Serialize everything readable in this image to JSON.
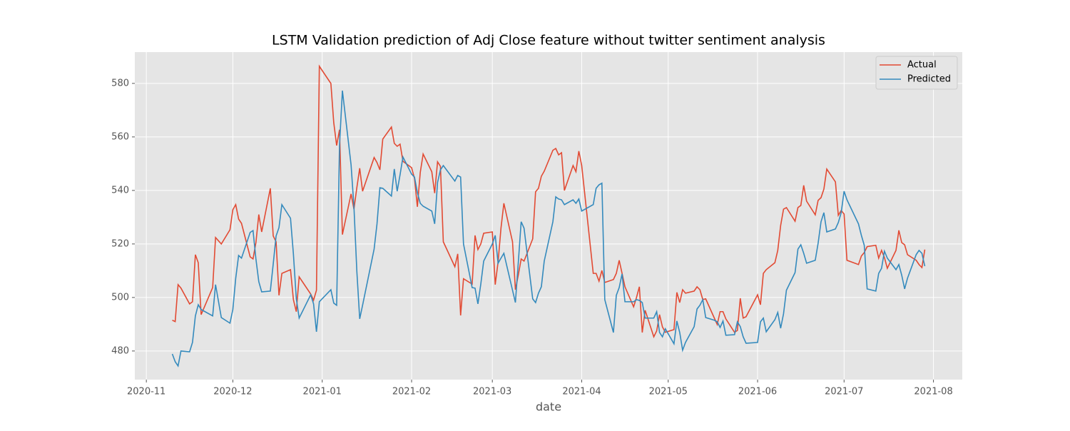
{
  "chart_data": {
    "type": "line",
    "title": "LSTM Validation prediction of Adj Close feature without twitter sentiment analysis",
    "x_label": "date",
    "grid": true,
    "legend": "upper right",
    "xlim": [
      "2020-10-28",
      "2021-08-11"
    ],
    "ylim": [
      469.3,
      591.7
    ],
    "xticks": [
      {
        "value": "2020-11-01",
        "label": "2020-11"
      },
      {
        "value": "2020-12-01",
        "label": "2020-12"
      },
      {
        "value": "2021-01-01",
        "label": "2021-01"
      },
      {
        "value": "2021-02-01",
        "label": "2021-02"
      },
      {
        "value": "2021-03-01",
        "label": "2021-03"
      },
      {
        "value": "2021-04-01",
        "label": "2021-04"
      },
      {
        "value": "2021-05-01",
        "label": "2021-05"
      },
      {
        "value": "2021-06-01",
        "label": "2021-06"
      },
      {
        "value": "2021-07-01",
        "label": "2021-07"
      },
      {
        "value": "2021-08-01",
        "label": "2021-08"
      }
    ],
    "yticks": [
      480,
      500,
      520,
      540,
      560,
      580
    ],
    "x": [
      "2020-11-10",
      "2020-11-11",
      "2020-11-12",
      "2020-11-13",
      "2020-11-16",
      "2020-11-17",
      "2020-11-18",
      "2020-11-19",
      "2020-11-20",
      "2020-11-24",
      "2020-11-25",
      "2020-11-27",
      "2020-11-30",
      "2020-12-01",
      "2020-12-02",
      "2020-12-03",
      "2020-12-04",
      "2020-12-07",
      "2020-12-08",
      "2020-12-09",
      "2020-12-10",
      "2020-12-11",
      "2020-12-14",
      "2020-12-15",
      "2020-12-16",
      "2020-12-17",
      "2020-12-18",
      "2020-12-21",
      "2020-12-22",
      "2020-12-23",
      "2020-12-24",
      "2020-12-28",
      "2020-12-29",
      "2020-12-30",
      "2020-12-31",
      "2021-01-04",
      "2021-01-05",
      "2021-01-06",
      "2021-01-07",
      "2021-01-08",
      "2021-01-11",
      "2021-01-12",
      "2021-01-13",
      "2021-01-14",
      "2021-01-15",
      "2021-01-19",
      "2021-01-20",
      "2021-01-21",
      "2021-01-22",
      "2021-01-25",
      "2021-01-26",
      "2021-01-27",
      "2021-01-28",
      "2021-01-29",
      "2021-02-01",
      "2021-02-02",
      "2021-02-03",
      "2021-02-04",
      "2021-02-05",
      "2021-02-08",
      "2021-02-09",
      "2021-02-10",
      "2021-02-11",
      "2021-02-12",
      "2021-02-16",
      "2021-02-17",
      "2021-02-18",
      "2021-02-19",
      "2021-02-22",
      "2021-02-23",
      "2021-02-24",
      "2021-02-25",
      "2021-02-26",
      "2021-03-01",
      "2021-03-02",
      "2021-03-03",
      "2021-03-04",
      "2021-03-05",
      "2021-03-08",
      "2021-03-09",
      "2021-03-10",
      "2021-03-11",
      "2021-03-12",
      "2021-03-15",
      "2021-03-16",
      "2021-03-17",
      "2021-03-18",
      "2021-03-19",
      "2021-03-22",
      "2021-03-23",
      "2021-03-24",
      "2021-03-25",
      "2021-03-26",
      "2021-03-29",
      "2021-03-30",
      "2021-03-31",
      "2021-04-01",
      "2021-04-05",
      "2021-04-06",
      "2021-04-07",
      "2021-04-08",
      "2021-04-09",
      "2021-04-12",
      "2021-04-13",
      "2021-04-14",
      "2021-04-15",
      "2021-04-16",
      "2021-04-19",
      "2021-04-20",
      "2021-04-21",
      "2021-04-22",
      "2021-04-23",
      "2021-04-26",
      "2021-04-27",
      "2021-04-28",
      "2021-04-29",
      "2021-04-30",
      "2021-05-03",
      "2021-05-04",
      "2021-05-05",
      "2021-05-06",
      "2021-05-07",
      "2021-05-10",
      "2021-05-11",
      "2021-05-12",
      "2021-05-13",
      "2021-05-14",
      "2021-05-17",
      "2021-05-18",
      "2021-05-19",
      "2021-05-20",
      "2021-05-21",
      "2021-05-24",
      "2021-05-25",
      "2021-05-26",
      "2021-05-27",
      "2021-05-28",
      "2021-06-01",
      "2021-06-02",
      "2021-06-03",
      "2021-06-04",
      "2021-06-07",
      "2021-06-08",
      "2021-06-09",
      "2021-06-10",
      "2021-06-11",
      "2021-06-14",
      "2021-06-15",
      "2021-06-16",
      "2021-06-17",
      "2021-06-18",
      "2021-06-21",
      "2021-06-22",
      "2021-06-23",
      "2021-06-24",
      "2021-06-25",
      "2021-06-28",
      "2021-06-29",
      "2021-06-30",
      "2021-07-01",
      "2021-07-02",
      "2021-07-06",
      "2021-07-07",
      "2021-07-08",
      "2021-07-09",
      "2021-07-12",
      "2021-07-13",
      "2021-07-14",
      "2021-07-15",
      "2021-07-16",
      "2021-07-19",
      "2021-07-20",
      "2021-07-21",
      "2021-07-22",
      "2021-07-23",
      "2021-07-26",
      "2021-07-27",
      "2021-07-28",
      "2021-07-29"
    ],
    "series": [
      {
        "name": "Actual",
        "color": "#E24A33",
        "values": [
          491.5,
          491,
          504.8,
          503.5,
          497.6,
          498.4,
          516,
          513,
          493.6,
          503.7,
          522.4,
          520,
          525.3,
          532.8,
          534.7,
          529.3,
          527.7,
          515.2,
          514.4,
          520.5,
          531,
          524.5,
          540.8,
          523,
          520.8,
          500.8,
          509,
          510.4,
          499.2,
          494.7,
          507.7,
          501.3,
          499,
          502.7,
          586.4,
          580,
          565.3,
          556.8,
          562.7,
          523.5,
          538.7,
          533,
          541,
          548.3,
          539.7,
          552.3,
          550.4,
          547.7,
          559.2,
          563.7,
          557.6,
          556.5,
          557.3,
          550.9,
          548.5,
          544.5,
          533.9,
          546.7,
          553.6,
          547,
          539,
          550.7,
          549,
          520.8,
          511.5,
          516.3,
          493.3,
          507,
          505,
          523.2,
          517.9,
          520,
          524,
          524.5,
          504.8,
          513.3,
          525.9,
          535.2,
          520.8,
          502.9,
          508.3,
          514.4,
          513.6,
          521.9,
          539.5,
          540.8,
          545.3,
          547.2,
          555,
          555.7,
          553.3,
          554.1,
          540,
          549.3,
          547,
          554.7,
          549.3,
          509,
          509,
          506.1,
          510.1,
          505.6,
          506.7,
          509,
          513.9,
          509,
          504,
          496.5,
          500,
          504,
          486.9,
          495.2,
          485.3,
          487.5,
          493.6,
          489,
          487,
          488,
          501.9,
          498.1,
          502.9,
          501.6,
          502.4,
          504,
          502.9,
          499.2,
          499.5,
          492.3,
          489.9,
          494.7,
          494.7,
          492,
          487,
          487.7,
          499.7,
          492.3,
          492.8,
          501,
          497.3,
          509,
          510.4,
          513,
          517.6,
          526.9,
          533,
          533.6,
          528.5,
          533.6,
          534.4,
          541.9,
          536,
          530.9,
          536.3,
          537.3,
          540.5,
          548,
          543.2,
          530.7,
          532.5,
          531.2,
          513.9,
          512.3,
          515.5,
          516.8,
          519,
          519.5,
          514.7,
          517.6,
          514.9,
          510.9,
          517.6,
          525.1,
          520.5,
          519.7,
          516,
          513.9,
          512.3,
          511.2,
          517.9
        ]
      },
      {
        "name": "Predicted",
        "color": "#348ABD",
        "values": [
          478.9,
          476,
          474.4,
          480,
          479.7,
          483.2,
          493.1,
          497.3,
          495.5,
          493.1,
          504.8,
          492.5,
          490.4,
          495.5,
          507.2,
          515.7,
          514.7,
          524.3,
          525,
          514.4,
          505.9,
          502.1,
          502.4,
          512.5,
          523,
          526.1,
          534.7,
          529.6,
          516.3,
          499.7,
          492.3,
          501,
          497.6,
          487.2,
          498.4,
          502.9,
          497.9,
          497.1,
          557,
          577.3,
          549.6,
          533.9,
          509.9,
          492,
          497.1,
          518.1,
          527.5,
          541,
          540.8,
          537.9,
          548,
          539.7,
          545.9,
          552.5,
          546.1,
          545,
          539.2,
          535.2,
          534.1,
          532.3,
          527.5,
          543,
          547.7,
          549.3,
          543.5,
          545.6,
          545,
          520,
          503.7,
          503.5,
          497.6,
          505,
          513.6,
          520,
          523.2,
          512.8,
          514.7,
          516.5,
          502.7,
          498.1,
          513,
          528.3,
          525.9,
          499.5,
          498.1,
          501.6,
          504,
          513.6,
          528.3,
          537.6,
          536.8,
          536.5,
          534.7,
          536.5,
          535.2,
          536.8,
          532.3,
          534.7,
          540.8,
          542.1,
          542.7,
          499.2,
          486.9,
          500.8,
          503.7,
          508.8,
          498.4,
          498.4,
          499.2,
          498.9,
          498.1,
          492.3,
          492.3,
          494.7,
          486.9,
          485.3,
          488.3,
          482.7,
          491.2,
          486.9,
          480.3,
          483.2,
          489.1,
          495.7,
          497.1,
          499.2,
          492.5,
          491.5,
          490.9,
          488.8,
          491.2,
          485.9,
          486.1,
          490.9,
          489.1,
          485.3,
          482.9,
          483.2,
          490.9,
          492.3,
          487.2,
          491.7,
          494.4,
          488.5,
          493.9,
          502.7,
          509.3,
          518.1,
          519.7,
          516.5,
          512.8,
          513.9,
          520.3,
          528.3,
          531.7,
          524.5,
          525.6,
          528,
          531.7,
          539.7,
          536.5,
          527.5,
          523.2,
          519.5,
          503.2,
          502.4,
          509,
          510.9,
          517.3,
          514.7,
          510.4,
          512.3,
          508.3,
          503.2,
          507.2,
          516,
          517.6,
          516.5,
          511.7
        ]
      }
    ]
  }
}
